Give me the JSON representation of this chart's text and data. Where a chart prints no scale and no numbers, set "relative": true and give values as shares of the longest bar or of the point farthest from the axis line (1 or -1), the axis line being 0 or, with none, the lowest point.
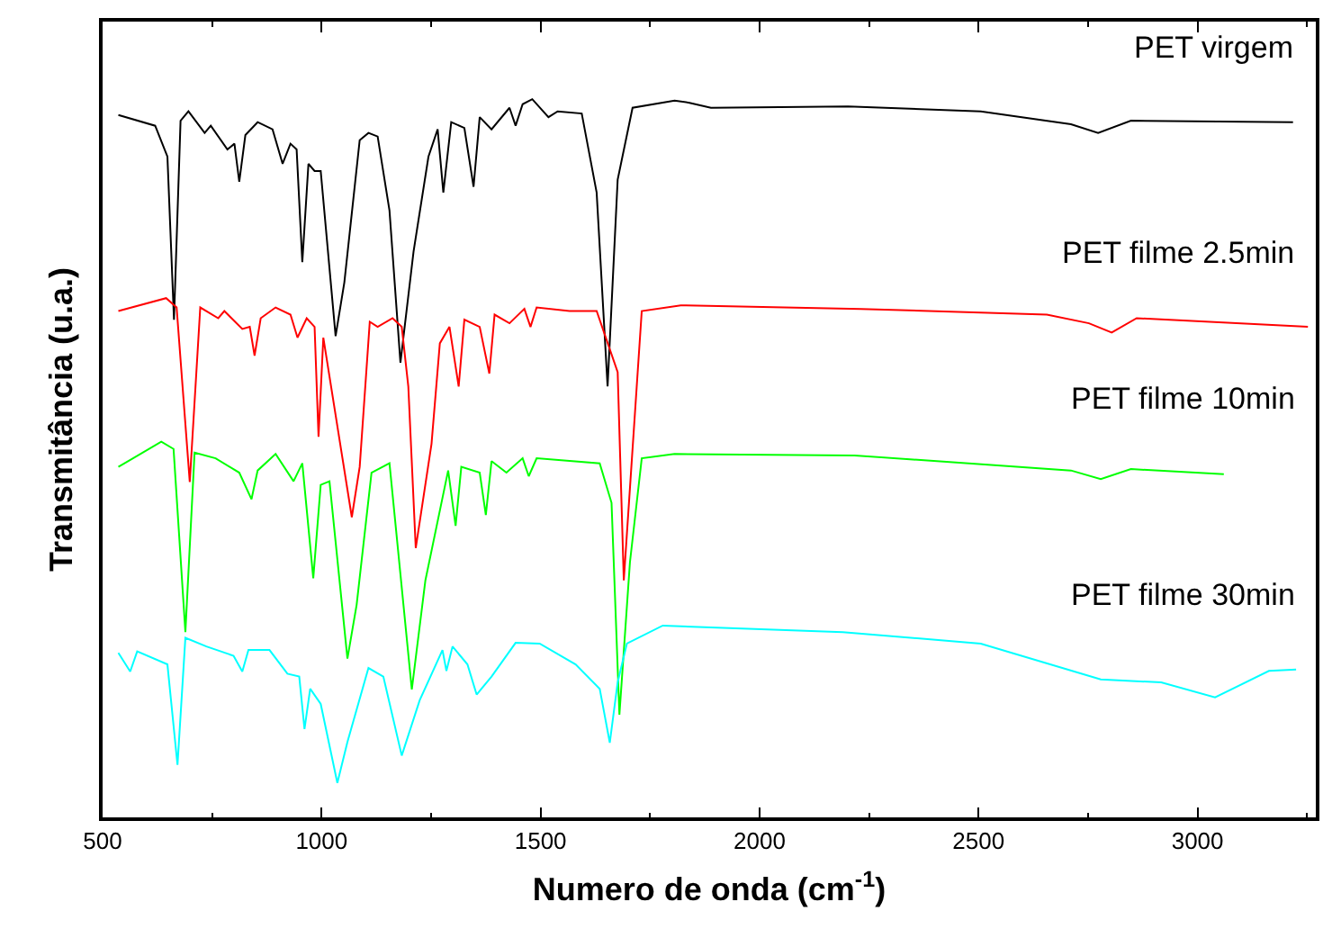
{
  "chart_data": {
    "type": "line",
    "xlabel": "Numero de onda (cm$^{-1}$)",
    "ylabel": "Transmitância (u.a.)",
    "relative": true,
    "xlim": [
      500,
      3270
    ],
    "xticks": [
      500,
      1000,
      1500,
      2000,
      2500,
      3000
    ],
    "marker": "none",
    "line_style": "solid",
    "series": [
      {
        "name": "PET virgem",
        "color": "#000000",
        "x": [
          536,
          620,
          648,
          663,
          678,
          696,
          733,
          747,
          785,
          801,
          812,
          826,
          854,
          888,
          911,
          929,
          943,
          956,
          970,
          984,
          998,
          1032,
          1052,
          1087,
          1107,
          1128,
          1155,
          1180,
          1210,
          1244,
          1265,
          1278,
          1296,
          1326,
          1347,
          1361,
          1388,
          1429,
          1443,
          1459,
          1481,
          1518,
          1539,
          1594,
          1628,
          1653,
          1676,
          1710,
          1806,
          1840,
          1889,
          2202,
          2505,
          2711,
          2773,
          2848,
          3218
        ],
        "values": [
          0.978,
          0.963,
          0.92,
          0.693,
          0.97,
          0.983,
          0.953,
          0.963,
          0.93,
          0.938,
          0.885,
          0.95,
          0.968,
          0.958,
          0.91,
          0.938,
          0.93,
          0.773,
          0.91,
          0.9,
          0.9,
          0.67,
          0.745,
          0.943,
          0.953,
          0.948,
          0.845,
          0.633,
          0.788,
          0.92,
          0.958,
          0.87,
          0.968,
          0.96,
          0.878,
          0.975,
          0.958,
          0.988,
          0.963,
          0.993,
          1.0,
          0.975,
          0.983,
          0.98,
          0.87,
          0.6,
          0.888,
          0.988,
          0.998,
          0.995,
          0.988,
          0.99,
          0.983,
          0.965,
          0.953,
          0.97,
          0.968
        ]
      },
      {
        "name": "PET filme 2.5min",
        "color": "#ff0000",
        "x": [
          536,
          645,
          669,
          699,
          723,
          764,
          778,
          819,
          836,
          847,
          861,
          895,
          929,
          945,
          966,
          984,
          993,
          1004,
          1069,
          1087,
          1110,
          1128,
          1162,
          1183,
          1198,
          1215,
          1251,
          1270,
          1292,
          1313,
          1326,
          1361,
          1383,
          1395,
          1429,
          1463,
          1477,
          1491,
          1566,
          1628,
          1676,
          1690,
          1731,
          1820,
          2231,
          2656,
          2752,
          2804,
          2861,
          3252
        ],
        "values": [
          0.705,
          0.723,
          0.71,
          0.467,
          0.71,
          0.695,
          0.705,
          0.68,
          0.683,
          0.643,
          0.695,
          0.71,
          0.7,
          0.668,
          0.695,
          0.683,
          0.53,
          0.668,
          0.418,
          0.488,
          0.69,
          0.683,
          0.695,
          0.683,
          0.6,
          0.375,
          0.52,
          0.66,
          0.683,
          0.6,
          0.693,
          0.683,
          0.618,
          0.7,
          0.688,
          0.708,
          0.683,
          0.71,
          0.705,
          0.705,
          0.62,
          0.33,
          0.705,
          0.713,
          0.708,
          0.7,
          0.688,
          0.675,
          0.695,
          0.683
        ]
      },
      {
        "name": "PET filme 10min",
        "color": "#00ff00",
        "x": [
          536,
          634,
          662,
          689,
          710,
          758,
          812,
          840,
          854,
          895,
          936,
          956,
          981,
          998,
          1018,
          1059,
          1080,
          1114,
          1155,
          1206,
          1237,
          1289,
          1306,
          1319,
          1361,
          1375,
          1388,
          1422,
          1459,
          1473,
          1491,
          1635,
          1662,
          1680,
          1704,
          1731,
          1806,
          2217,
          2711,
          2779,
          2848,
          3060
        ],
        "values": [
          0.488,
          0.523,
          0.513,
          0.258,
          0.508,
          0.5,
          0.48,
          0.443,
          0.483,
          0.506,
          0.468,
          0.493,
          0.333,
          0.463,
          0.468,
          0.221,
          0.296,
          0.48,
          0.493,
          0.178,
          0.33,
          0.483,
          0.406,
          0.488,
          0.48,
          0.421,
          0.496,
          0.48,
          0.5,
          0.475,
          0.5,
          0.493,
          0.438,
          0.143,
          0.355,
          0.5,
          0.506,
          0.504,
          0.483,
          0.471,
          0.485,
          0.478
        ]
      },
      {
        "name": "PET filme 30min",
        "color": "#00ffff",
        "x": [
          536,
          563,
          579,
          648,
          671,
          689,
          737,
          799,
          819,
          833,
          881,
          922,
          949,
          961,
          974,
          998,
          1036,
          1059,
          1107,
          1141,
          1183,
          1224,
          1276,
          1285,
          1299,
          1333,
          1354,
          1388,
          1443,
          1498,
          1580,
          1635,
          1658,
          1676,
          1697,
          1779,
          2190,
          2505,
          2779,
          2917,
          3040,
          3163,
          3225
        ],
        "values": [
          0.229,
          0.203,
          0.231,
          0.213,
          0.073,
          0.25,
          0.238,
          0.225,
          0.203,
          0.233,
          0.233,
          0.2,
          0.196,
          0.123,
          0.179,
          0.158,
          0.048,
          0.105,
          0.208,
          0.196,
          0.086,
          0.163,
          0.233,
          0.204,
          0.238,
          0.213,
          0.171,
          0.196,
          0.243,
          0.242,
          0.213,
          0.179,
          0.104,
          0.188,
          0.242,
          0.267,
          0.258,
          0.242,
          0.192,
          0.188,
          0.167,
          0.204,
          0.206
        ]
      }
    ]
  }
}
